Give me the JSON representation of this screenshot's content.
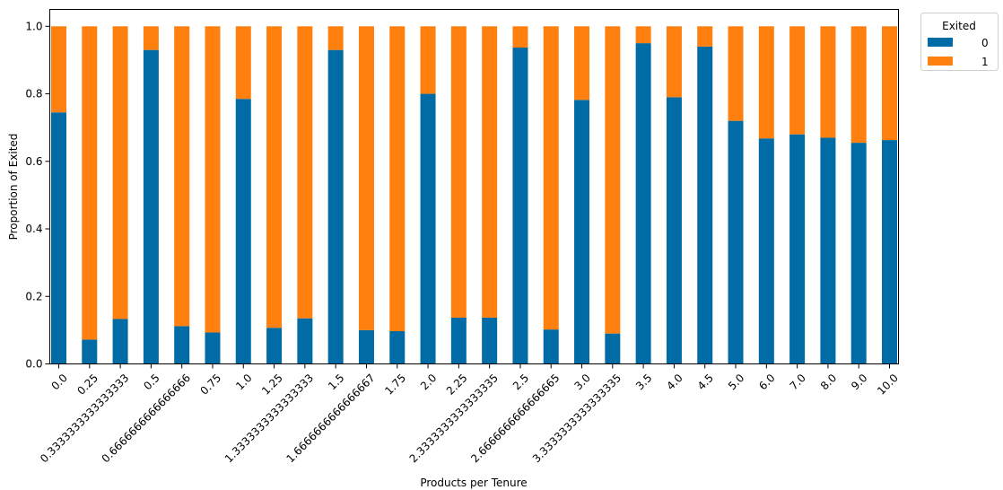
{
  "chart_data": {
    "type": "bar",
    "stacked": true,
    "title": "",
    "xlabel": "Products per Tenure",
    "ylabel": "Proportion of Exited",
    "ylim": [
      0,
      1.05
    ],
    "yticks": [
      "0.0",
      "0.2",
      "0.4",
      "0.6",
      "0.8",
      "1.0"
    ],
    "grid": false,
    "legend": {
      "title": "Exited",
      "placement": "outside-top-right"
    },
    "categories": [
      "0.0",
      "0.25",
      "0.3333333333333333",
      "0.5",
      "0.6666666666666666",
      "0.75",
      "1.0",
      "1.25",
      "1.3333333333333333",
      "1.5",
      "1.6666666666666667",
      "1.75",
      "2.0",
      "2.25",
      "2.3333333333333335",
      "2.5",
      "2.6666666666666665",
      "3.0",
      "3.3333333333333335",
      "3.5",
      "4.0",
      "4.5",
      "5.0",
      "6.0",
      "7.0",
      "8.0",
      "9.0",
      "10.0"
    ],
    "series": [
      {
        "name": "0",
        "color": "#006ba4",
        "values": [
          0.745,
          0.072,
          0.133,
          0.93,
          0.112,
          0.093,
          0.785,
          0.107,
          0.135,
          0.93,
          0.1,
          0.097,
          0.8,
          0.137,
          0.137,
          0.937,
          0.102,
          0.782,
          0.09,
          0.95,
          0.79,
          0.94,
          0.72,
          0.668,
          0.68,
          0.67,
          0.655,
          0.663
        ]
      },
      {
        "name": "1",
        "color": "#ff800e",
        "values": [
          0.255,
          0.928,
          0.867,
          0.07,
          0.888,
          0.907,
          0.215,
          0.893,
          0.865,
          0.07,
          0.9,
          0.903,
          0.2,
          0.863,
          0.863,
          0.063,
          0.898,
          0.218,
          0.91,
          0.05,
          0.21,
          0.06,
          0.28,
          0.332,
          0.32,
          0.33,
          0.345,
          0.337
        ]
      }
    ]
  }
}
